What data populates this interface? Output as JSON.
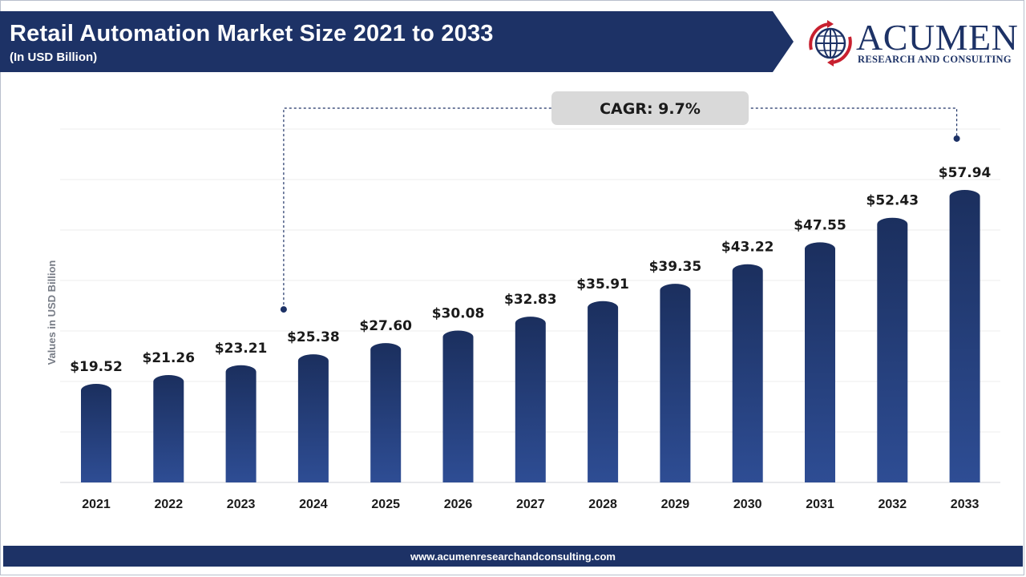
{
  "header": {
    "title": "Retail Automation Market Size 2021 to 2033",
    "subtitle": "(In USD Billion)"
  },
  "logo": {
    "name": "ACUMEN",
    "tagline": "RESEARCH AND CONSULTING"
  },
  "footer": {
    "url": "www.acumenresearchandconsulting.com"
  },
  "colors": {
    "banner": "#1d3266",
    "bar_top": "#1b2f5e",
    "bar_bottom": "#2e4d94",
    "annotation": "#1d3266",
    "cagr_box": "#d9d9d9"
  },
  "chart_data": {
    "type": "bar",
    "title": "Retail Automation Market Size 2021 to 2033",
    "subtitle": "(In USD Billion)",
    "ylabel": "Values in USD Billion",
    "xlabel": "",
    "categories": [
      "2021",
      "2022",
      "2023",
      "2024",
      "2025",
      "2026",
      "2027",
      "2028",
      "2029",
      "2030",
      "2031",
      "2032",
      "2033"
    ],
    "values": [
      19.52,
      21.26,
      23.21,
      25.38,
      27.6,
      30.08,
      32.83,
      35.91,
      39.35,
      43.22,
      47.55,
      52.43,
      57.94
    ],
    "value_labels": [
      "$19.52",
      "$21.26",
      "$23.21",
      "$25.38",
      "$27.60",
      "$30.08",
      "$32.83",
      "$35.91",
      "$39.35",
      "$43.22",
      "$47.55",
      "$52.43",
      "$57.94"
    ],
    "ylim": [
      0,
      70
    ],
    "grid": true,
    "legend": "none",
    "annotation": {
      "text": "CAGR: 9.7%",
      "from_category": "2024",
      "to_category": "2033"
    }
  }
}
